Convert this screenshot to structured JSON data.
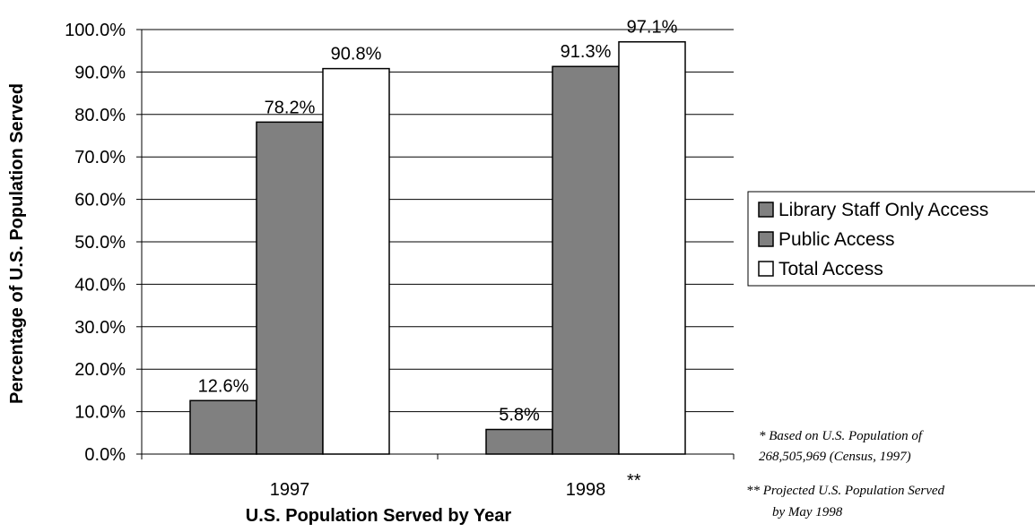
{
  "colors": {
    "library_staff_only": "#808080",
    "public": "#808080",
    "total": "#ffffff",
    "axis": "#000000"
  },
  "chart_data": {
    "type": "bar",
    "ylabel": "Percentage of U.S. Population Served",
    "xlabel": "U.S. Population Served by Year",
    "ylim": [
      0,
      100
    ],
    "y_ticks": [
      "0.0%",
      "10.0%",
      "20.0%",
      "30.0%",
      "40.0%",
      "50.0%",
      "60.0%",
      "70.0%",
      "80.0%",
      "90.0%",
      "100.0%"
    ],
    "grid": true,
    "legend_position": "right",
    "categories": [
      "1997",
      "1998"
    ],
    "category_superscripts": [
      "",
      "**"
    ],
    "series": [
      {
        "name": "Library Staff Only Access",
        "values": [
          12.6,
          5.8
        ],
        "labels": [
          "12.6%",
          "5.8%"
        ]
      },
      {
        "name": "Public Access",
        "values": [
          78.2,
          91.3
        ],
        "labels": [
          "78.2%",
          "91.3%"
        ]
      },
      {
        "name": "Total Access",
        "values": [
          90.8,
          97.1
        ],
        "labels": [
          "90.8%",
          "97.1%"
        ]
      }
    ],
    "notes": [
      "* Based on U.S. Population of",
      "268,505,969 (Census, 1997)",
      "** Projected U.S. Population Served",
      "by May 1998"
    ]
  }
}
